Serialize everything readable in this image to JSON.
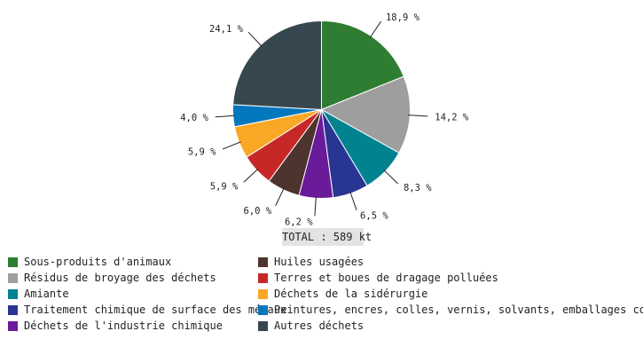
{
  "chart_data": {
    "type": "pie",
    "title": "",
    "total_label": "TOTAL : 589 kt",
    "start_angle_deg": 0,
    "direction": "clockwise",
    "slices": [
      {
        "name": "Sous-produits d'animaux",
        "value": 18.9,
        "label": "18,9 %",
        "color": "#2e7d32"
      },
      {
        "name": "Résidus de broyage des déchets",
        "value": 14.2,
        "label": "14,2 %",
        "color": "#9e9e9e"
      },
      {
        "name": "Amiante",
        "value": 8.3,
        "label": "8,3 %",
        "color": "#00838f"
      },
      {
        "name": "Traitement chimique de surface des métaux",
        "value": 6.5,
        "label": "6,5 %",
        "color": "#283593"
      },
      {
        "name": "Déchets de l'industrie chimique",
        "value": 6.2,
        "label": "6,2 %",
        "color": "#6a1b9a"
      },
      {
        "name": "Huiles usagées",
        "value": 6.0,
        "label": "6,0 %",
        "color": "#4e342e"
      },
      {
        "name": "Terres et boues de dragage polluées",
        "value": 5.9,
        "label": "5,9 %",
        "color": "#c62828"
      },
      {
        "name": "Déchets de la sidérurgie",
        "value": 5.9,
        "label": "5,9 %",
        "color": "#f9a825"
      },
      {
        "name": "Peintures, encres, colles, vernis, solvants, emballages co",
        "value": 4.0,
        "label": "4,0 %",
        "color": "#0277bd"
      },
      {
        "name": "Autres déchets",
        "value": 24.1,
        "label": "24,1 %",
        "color": "#37474f"
      }
    ],
    "legend_position": "bottom"
  }
}
